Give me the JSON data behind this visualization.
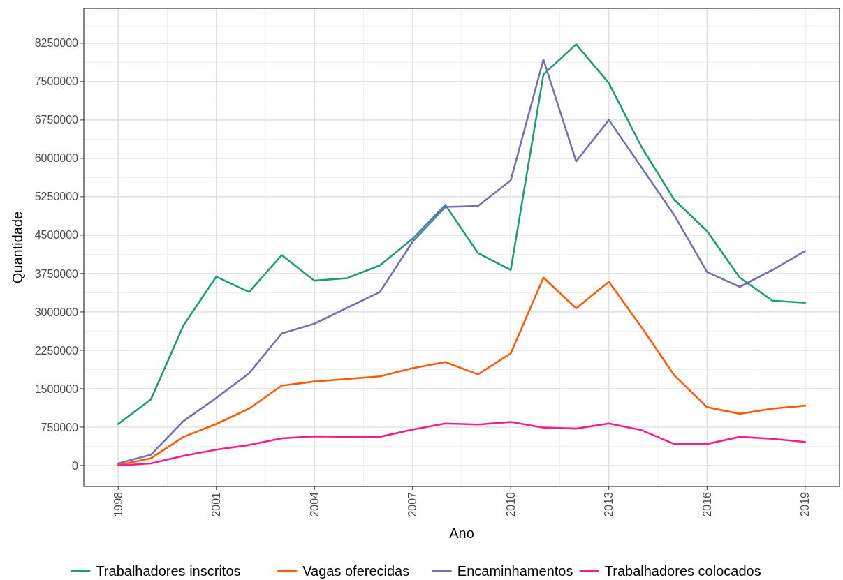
{
  "chart_data": {
    "type": "line",
    "xlabel": "Ano",
    "ylabel": "Quantidade",
    "x": [
      1998,
      1999,
      2000,
      2001,
      2002,
      2003,
      2004,
      2005,
      2006,
      2007,
      2008,
      2009,
      2010,
      2011,
      2012,
      2013,
      2014,
      2015,
      2016,
      2017,
      2018,
      2019
    ],
    "series": [
      {
        "name": "Trabalhadores inscritos",
        "color": "#1b9e77",
        "values": [
          810000,
          1290000,
          2740000,
          3690000,
          3390000,
          4110000,
          3610000,
          3660000,
          3910000,
          4430000,
          5090000,
          4150000,
          3820000,
          7640000,
          8230000,
          7470000,
          6220000,
          5190000,
          4580000,
          3670000,
          3220000,
          3180000
        ]
      },
      {
        "name": "Vagas oferecidas",
        "color": "#ff5a00",
        "values": [
          10000,
          140000,
          560000,
          810000,
          1110000,
          1560000,
          1640000,
          1690000,
          1740000,
          1900000,
          2020000,
          1780000,
          2190000,
          3670000,
          3070000,
          3590000,
          2700000,
          1760000,
          1140000,
          1010000,
          1110000,
          1170000
        ]
      },
      {
        "name": "Encaminhamentos",
        "color": "#7570b3",
        "values": [
          40000,
          210000,
          870000,
          1320000,
          1800000,
          2580000,
          2770000,
          3080000,
          3390000,
          4370000,
          5050000,
          5070000,
          5570000,
          7930000,
          5940000,
          6750000,
          5820000,
          4890000,
          3780000,
          3490000,
          3820000,
          4190000
        ]
      },
      {
        "name": "Trabalhadores colocados",
        "color": "#ff1c85",
        "values": [
          0,
          40000,
          190000,
          310000,
          400000,
          530000,
          570000,
          560000,
          560000,
          700000,
          820000,
          800000,
          850000,
          740000,
          720000,
          820000,
          690000,
          420000,
          420000,
          560000,
          520000,
          460000
        ]
      }
    ],
    "xlim": [
      1996.95,
      2020.05
    ],
    "xticks": [
      1998,
      2001,
      2004,
      2007,
      2010,
      2013,
      2016,
      2019
    ],
    "ylim": [
      -410000,
      8930000
    ],
    "yticks": [
      0,
      750000,
      1500000,
      2250000,
      3000000,
      3750000,
      4500000,
      5250000,
      6000000,
      6750000,
      7500000,
      8250000
    ],
    "grid": true,
    "legend": "bottom",
    "line_style": "solid",
    "marker": "none"
  }
}
